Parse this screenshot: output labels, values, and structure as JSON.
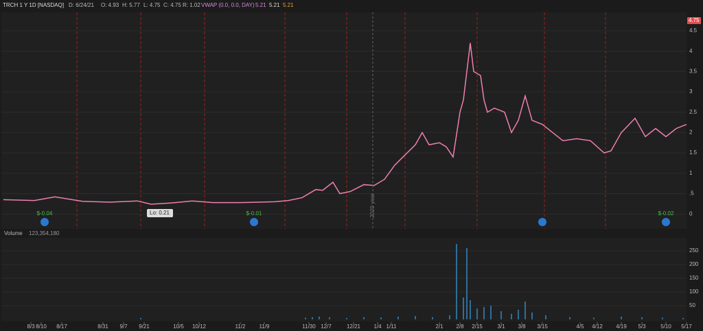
{
  "header": {
    "symbol": "TRCH 1 Y 1D [NASDAQ]",
    "date": "D: 6/24/21",
    "open": "O: 4.93",
    "high": "H: 5.77",
    "low": "L: 4.75",
    "close": "C: 4.75",
    "range": "R: 1.02",
    "vwap": "VWAP (0.0, 0.0, DAY)",
    "vwap_values": [
      "5.21",
      "5.21",
      "5.21"
    ]
  },
  "chart_data": [
    {
      "type": "line",
      "series": [
        {
          "name": "TRCH",
          "color": "#f07fb0",
          "x": [
            0,
            9,
            15,
            23,
            31,
            39,
            43,
            49,
            55,
            61,
            69,
            79,
            83,
            87,
            91,
            93,
            96,
            98,
            101,
            105,
            108,
            111,
            114,
            117,
            120,
            122,
            124,
            127,
            129,
            131,
            133,
            134,
            136,
            137,
            139,
            140,
            141,
            143,
            146,
            148,
            150,
            152,
            154,
            157,
            160,
            163,
            167,
            171,
            175,
            177,
            180,
            184,
            187,
            190,
            193,
            196,
            199
          ],
          "values": [
            0.35,
            0.33,
            0.42,
            0.31,
            0.29,
            0.32,
            0.24,
            0.27,
            0.32,
            0.28,
            0.28,
            0.3,
            0.33,
            0.4,
            0.6,
            0.58,
            0.78,
            0.5,
            0.55,
            0.72,
            0.7,
            0.85,
            1.2,
            1.45,
            1.7,
            2.0,
            1.7,
            1.75,
            1.65,
            1.4,
            2.5,
            2.8,
            4.2,
            3.5,
            3.4,
            2.8,
            2.5,
            2.6,
            2.5,
            2.0,
            2.3,
            2.9,
            2.3,
            2.2,
            2.0,
            1.8,
            1.85,
            1.8,
            1.5,
            1.55,
            2.0,
            2.35,
            1.9,
            2.1,
            1.9,
            2.1,
            2.2
          ]
        }
      ],
      "xlim": [
        0,
        199
      ],
      "ylim": [
        -0.35,
        4.92
      ],
      "yticks": [
        0,
        {
          "value": 0.5,
          "label": ".5"
        },
        1,
        {
          "value": 1.5,
          "label": "1.5"
        },
        2,
        {
          "value": 2.5,
          "label": "2.5"
        },
        3,
        {
          "value": 3.5,
          "label": "3.5"
        },
        4,
        {
          "value": 4.5,
          "label": "4.5"
        }
      ],
      "last_price": {
        "value": 4.75,
        "label": "4.75"
      },
      "annotations": [
        {
          "text": "Lo: 0.21",
          "x": 43
        },
        {
          "text": "$-0.04",
          "x": 12
        },
        {
          "text": "$-0.01",
          "x": 73
        },
        {
          "text": "$-0.02",
          "x": 193
        },
        {
          "text": "2020 year",
          "x": 107.6
        }
      ]
    },
    {
      "type": "bar",
      "title": "Volume",
      "subtitle": "123,354,180",
      "color": "#2f6f9a",
      "x": [
        40,
        88,
        90,
        92,
        95,
        100,
        105,
        110,
        115,
        120,
        125,
        130,
        132,
        134,
        135,
        136,
        138,
        140,
        142,
        145,
        148,
        150,
        152,
        154,
        158,
        165,
        172,
        180,
        186,
        192,
        198
      ],
      "values": [
        5,
        6,
        8,
        10,
        8,
        5,
        8,
        7,
        10,
        12,
        8,
        15,
        275,
        80,
        260,
        70,
        40,
        45,
        50,
        30,
        20,
        35,
        65,
        25,
        15,
        8,
        6,
        10,
        8,
        6,
        5
      ],
      "xlim": [
        0,
        199
      ],
      "ylim": [
        -10,
        290
      ],
      "yticks": [
        50,
        100,
        150,
        200,
        250
      ],
      "xticks": [
        {
          "value": 8,
          "label": "8/3"
        },
        {
          "value": 11,
          "label": "8/10"
        },
        {
          "value": 17,
          "label": "8/17"
        },
        {
          "value": 29,
          "label": "8/31"
        },
        {
          "value": 35,
          "label": "9/7"
        },
        {
          "value": 41,
          "label": "9/21"
        },
        {
          "value": 51,
          "label": "10/5"
        },
        {
          "value": 57,
          "label": "10/12"
        },
        {
          "value": 69,
          "label": "11/2"
        },
        {
          "value": 76,
          "label": "11/9"
        },
        {
          "value": 89,
          "label": "11/30"
        },
        {
          "value": 94,
          "label": "12/7"
        },
        {
          "value": 102,
          "label": "12/21"
        },
        {
          "value": 109,
          "label": "1/4"
        },
        {
          "value": 113,
          "label": "1/11"
        },
        {
          "value": 127,
          "label": "2/1"
        },
        {
          "value": 133,
          "label": "2/8"
        },
        {
          "value": 138,
          "label": "2/15"
        },
        {
          "value": 145,
          "label": "3/1"
        },
        {
          "value": 151,
          "label": "3/8"
        },
        {
          "value": 157,
          "label": "3/15"
        },
        {
          "value": 168,
          "label": "4/5"
        },
        {
          "value": 173,
          "label": "4/12"
        },
        {
          "value": 180,
          "label": "4/19"
        },
        {
          "value": 186,
          "label": "5/3"
        },
        {
          "value": 193,
          "label": "5/10"
        },
        {
          "value": 199,
          "label": "5/17"
        }
      ]
    }
  ]
}
